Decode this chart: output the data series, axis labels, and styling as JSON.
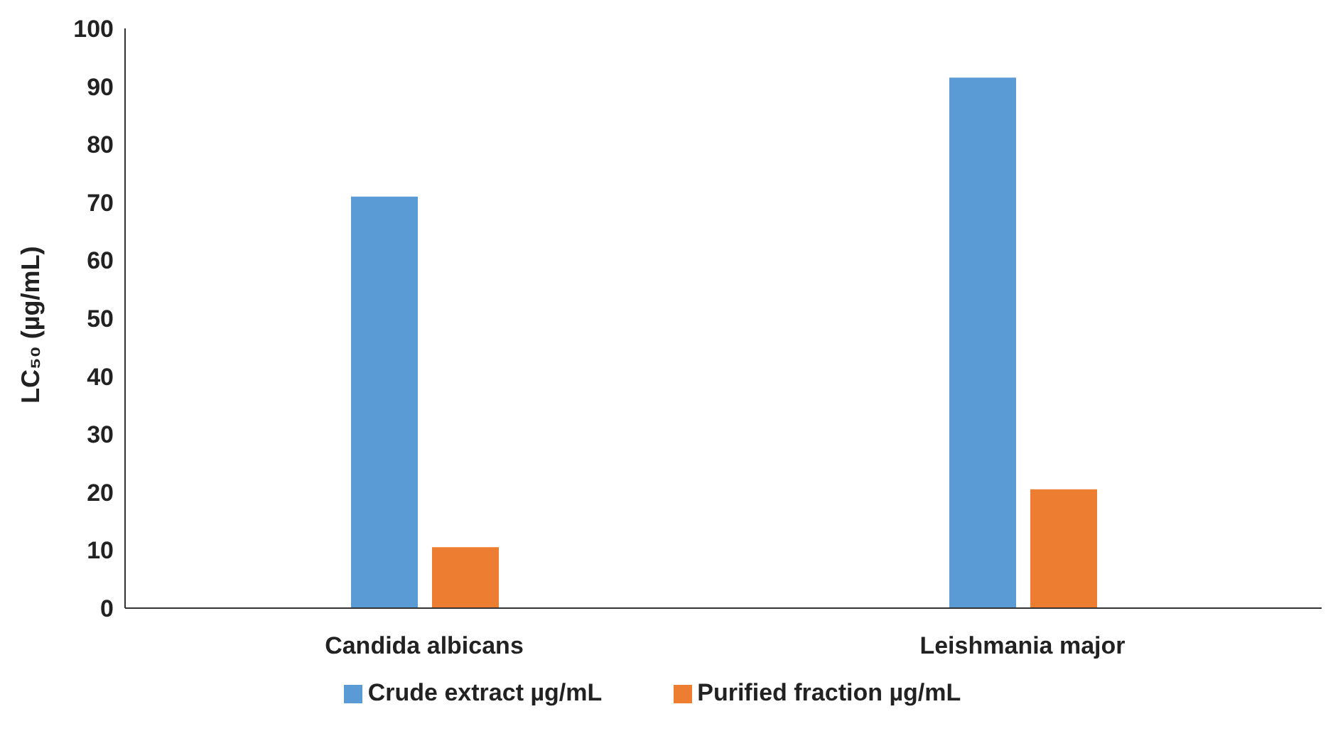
{
  "chart_data": {
    "type": "bar",
    "ylabel": "LC₅₀ (µg/mL)",
    "categories": [
      "Candida albicans",
      "Leishmania major"
    ],
    "series": [
      {
        "name": "Crude extract µg/mL",
        "color": "#5b9bd5",
        "values": [
          71,
          91.5
        ]
      },
      {
        "name": "Purified fraction µg/mL",
        "color": "#ed7d31",
        "values": [
          10.5,
          20.5
        ]
      }
    ],
    "ylim": [
      0,
      100
    ],
    "yticks": [
      0,
      10,
      20,
      30,
      40,
      50,
      60,
      70,
      80,
      90,
      100
    ],
    "grid": false,
    "legend": "bottom"
  }
}
